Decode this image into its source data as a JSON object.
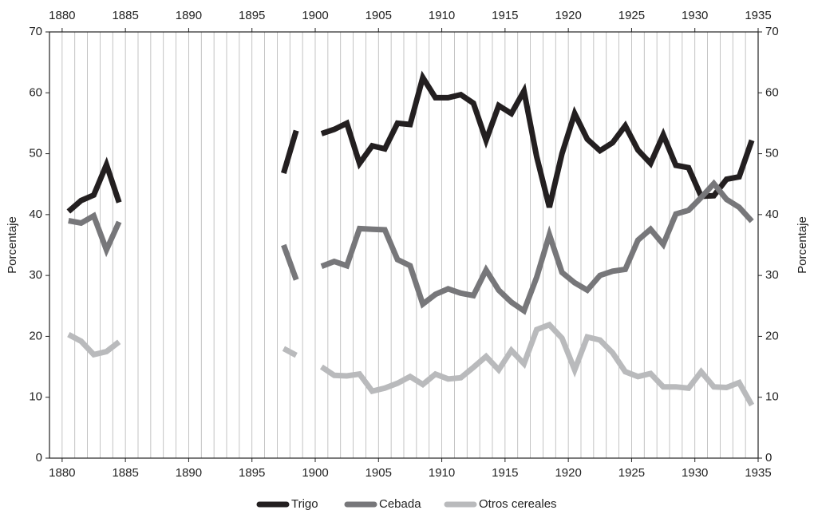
{
  "chart_data": {
    "type": "line",
    "y_label": "Porcentaje",
    "x": [
      1880.5,
      1881.5,
      1882.5,
      1883.5,
      1884.5,
      null,
      1897.5,
      1898.5,
      null,
      1900.5,
      1901.5,
      1902.5,
      1903.5,
      1904.5,
      1905.5,
      1906.5,
      1907.5,
      1908.5,
      1909.5,
      1910.5,
      1911.5,
      1912.5,
      1913.5,
      1914.5,
      1915.5,
      1916.5,
      1917.5,
      1918.5,
      1919.5,
      1920.5,
      1921.5,
      1922.5,
      1923.5,
      1924.5,
      1925.5,
      1926.5,
      1927.5,
      1928.5,
      1929.5,
      1930.5,
      1931.5,
      1932.5,
      1933.5,
      1934.5
    ],
    "series": [
      {
        "name": "Trigo",
        "color": "#231f20",
        "values": [
          40.5,
          42.3,
          43.2,
          48.2,
          42,
          null,
          46.8,
          53.8,
          null,
          53.3,
          54,
          55,
          48.4,
          51.3,
          50.8,
          55,
          54.8,
          62.5,
          59.2,
          59.2,
          59.7,
          58.3,
          52.2,
          57.9,
          56.6,
          60.3,
          49.5,
          41.2,
          50,
          56.6,
          52.4,
          50.5,
          51.8,
          54.6,
          50.6,
          48.4,
          53.1,
          48.1,
          47.7,
          43,
          43.1,
          45.8,
          46.2,
          52.2
        ]
      },
      {
        "name": "Cebada",
        "color": "#77777a",
        "values": [
          39,
          38.6,
          39.8,
          34.2,
          38.8,
          null,
          35,
          29.3,
          null,
          31.5,
          32.3,
          31.6,
          37.7,
          37.6,
          37.5,
          32.6,
          31.6,
          25.3,
          26.9,
          27.8,
          27.1,
          26.7,
          30.9,
          27.6,
          25.6,
          24.2,
          29.7,
          36.7,
          30.5,
          28.8,
          27.6,
          30,
          30.7,
          31,
          35.8,
          37.6,
          35.1,
          40.1,
          40.7,
          42.8,
          45.1,
          42.5,
          41.2,
          38.9
        ]
      },
      {
        "name": "Otros cereales",
        "color": "#b9babc",
        "values": [
          20.3,
          19.2,
          17,
          17.5,
          19.1,
          null,
          18,
          16.9,
          null,
          15,
          13.6,
          13.5,
          13.8,
          11,
          11.5,
          12.3,
          13.4,
          12.1,
          13.8,
          13,
          13.2,
          14.9,
          16.7,
          14.5,
          17.7,
          15.5,
          21.1,
          21.9,
          19.7,
          14.5,
          19.9,
          19.4,
          17.3,
          14.2,
          13.4,
          13.9,
          11.7,
          11.7,
          11.5,
          14.2,
          11.7,
          11.6,
          12.4,
          8.7
        ]
      }
    ],
    "xlim": [
      1879,
      1935
    ],
    "xticks": [
      1880,
      1885,
      1890,
      1895,
      1900,
      1905,
      1910,
      1915,
      1920,
      1925,
      1930,
      1935
    ],
    "x_minor_grid": [
      1880,
      1881,
      1882,
      1883,
      1884,
      1885,
      1886,
      1887,
      1888,
      1889,
      1890,
      1891,
      1892,
      1893,
      1894,
      1895,
      1896,
      1897,
      1898,
      1899,
      1900,
      1901,
      1902,
      1903,
      1904,
      1905,
      1906,
      1907,
      1908,
      1909,
      1910,
      1911,
      1912,
      1913,
      1914,
      1915,
      1916,
      1917,
      1918,
      1919,
      1920,
      1921,
      1922,
      1923,
      1924,
      1925,
      1926,
      1927,
      1928,
      1929,
      1930,
      1931,
      1932,
      1933,
      1934
    ],
    "ylim": [
      0,
      70
    ],
    "yticks": [
      0,
      10,
      20,
      30,
      40,
      50,
      60,
      70
    ],
    "y2lim": [
      0,
      70
    ],
    "y2ticks": [
      0,
      10,
      20,
      30,
      40,
      50,
      60,
      70
    ],
    "legend": "bottom"
  }
}
